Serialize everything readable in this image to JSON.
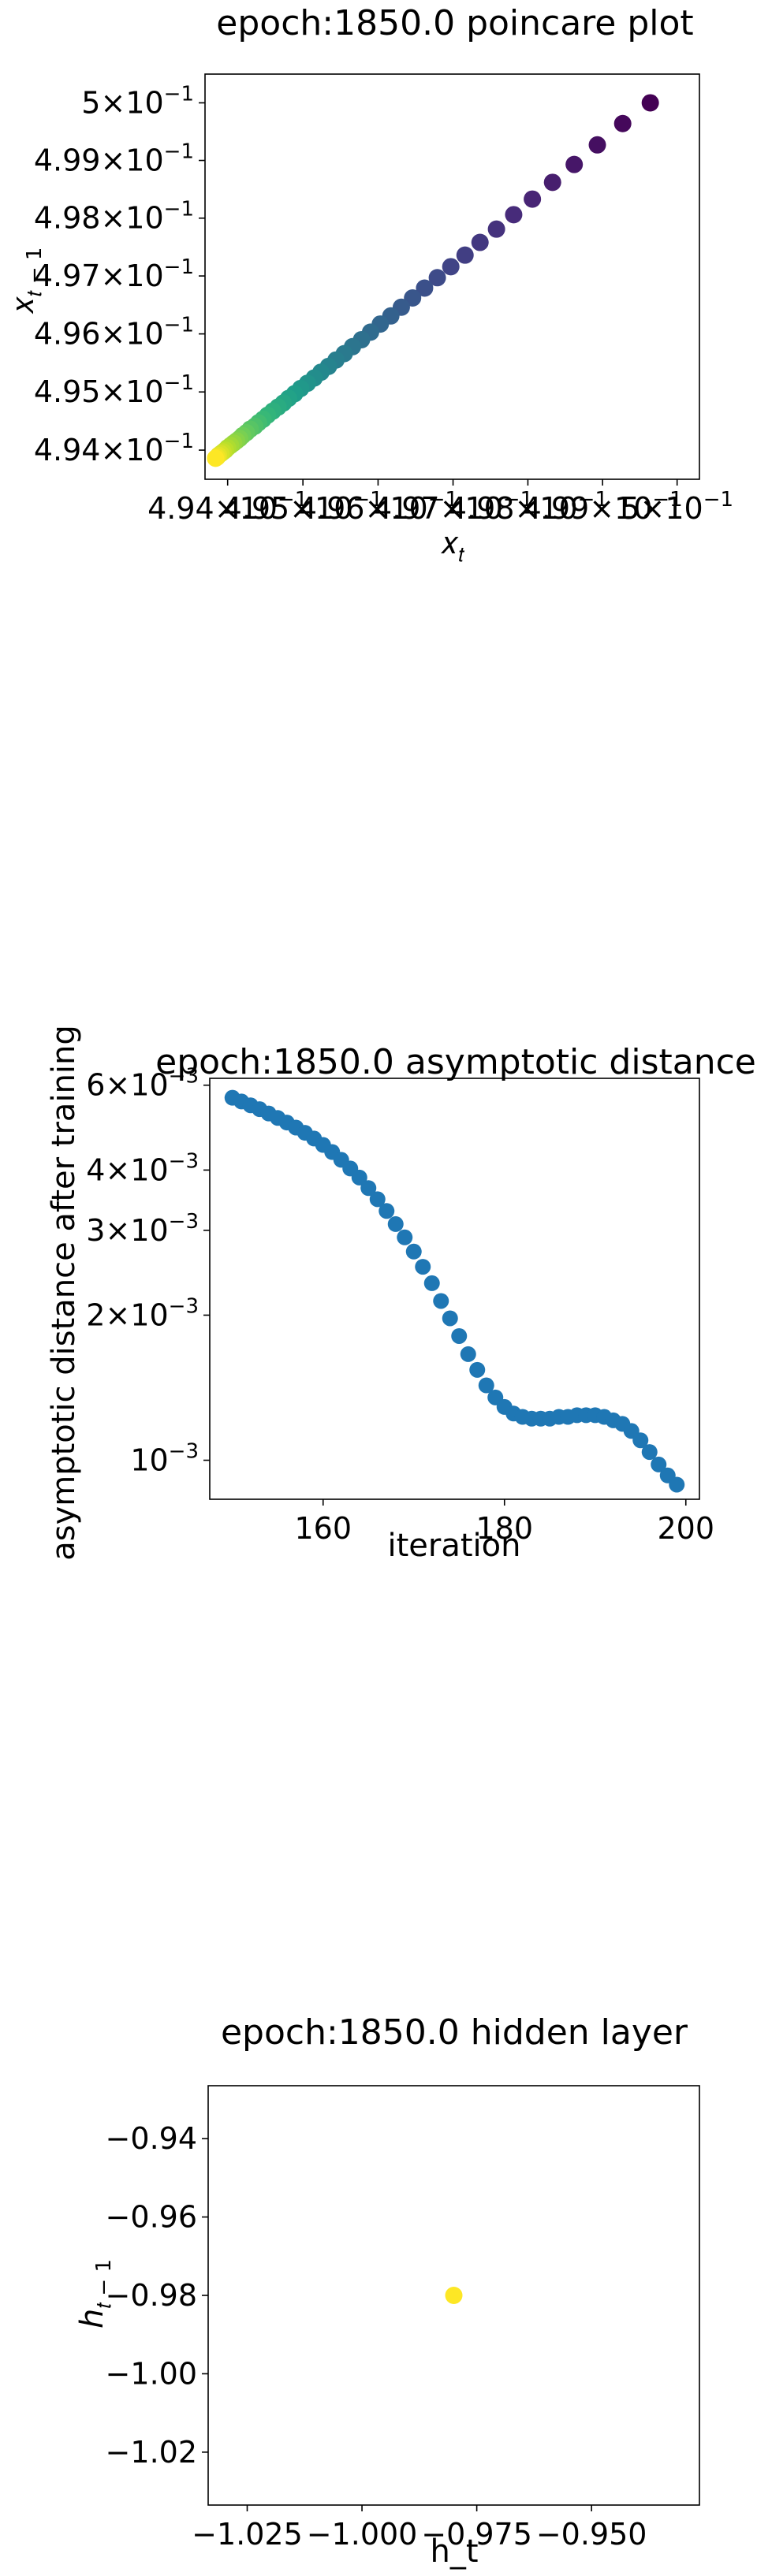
{
  "chart_data": [
    {
      "type": "scatter",
      "title": "epoch:1850.0 poincare plot",
      "xlabel": "x_t",
      "ylabel": "x_{t-1}",
      "x_scale": "log",
      "y_scale": "log",
      "xlim": [
        0.4937,
        0.5003
      ],
      "ylim": [
        0.4935,
        0.5005
      ],
      "x_ticks": [
        0.494,
        0.495,
        0.496,
        0.497,
        0.498,
        0.499,
        0.5
      ],
      "x_tick_labels": [
        {
          "mant": "4.94",
          "exp": "−1"
        },
        {
          "mant": "4.95",
          "exp": "−1"
        },
        {
          "mant": "4.96",
          "exp": "−1"
        },
        {
          "mant": "4.97",
          "exp": "−1"
        },
        {
          "mant": "4.98",
          "exp": "−1"
        },
        {
          "mant": "4.99",
          "exp": "−1"
        },
        {
          "mant": "5",
          "exp": "−1"
        }
      ],
      "y_ticks": [
        0.494,
        0.495,
        0.496,
        0.497,
        0.498,
        0.499,
        0.5
      ],
      "y_tick_labels": [
        {
          "mant": "4.94",
          "exp": "−1"
        },
        {
          "mant": "4.95",
          "exp": "−1"
        },
        {
          "mant": "4.96",
          "exp": "−1"
        },
        {
          "mant": "4.97",
          "exp": "−1"
        },
        {
          "mant": "4.98",
          "exp": "−1"
        },
        {
          "mant": "4.99",
          "exp": "−1"
        },
        {
          "mant": "5",
          "exp": "−1"
        }
      ],
      "colormap": "viridis",
      "color_order": "first point purple, last point yellow",
      "x": [
        0.49964,
        0.49927,
        0.49893,
        0.49862,
        0.49833,
        0.49806,
        0.49781,
        0.49758,
        0.49736,
        0.49716,
        0.49697,
        0.49679,
        0.49662,
        0.49646,
        0.49631,
        0.49617,
        0.49603,
        0.4959,
        0.49578,
        0.49566,
        0.49555,
        0.49544,
        0.49534,
        0.49524,
        0.49515,
        0.49506,
        0.49497,
        0.49489,
        0.49481,
        0.49474,
        0.49467,
        0.4946,
        0.49453,
        0.49447,
        0.49441,
        0.49436,
        0.4943,
        0.49425,
        0.4942,
        0.49416,
        0.49412,
        0.49408,
        0.49404,
        0.494,
        0.49397,
        0.49394,
        0.49391,
        0.49388,
        0.49386,
        0.49384
      ],
      "y": [
        0.5,
        0.49964,
        0.49927,
        0.49893,
        0.49862,
        0.49833,
        0.49806,
        0.49781,
        0.49758,
        0.49736,
        0.49716,
        0.49697,
        0.49679,
        0.49662,
        0.49646,
        0.49631,
        0.49617,
        0.49603,
        0.4959,
        0.49578,
        0.49566,
        0.49555,
        0.49544,
        0.49534,
        0.49524,
        0.49515,
        0.49506,
        0.49497,
        0.49489,
        0.49481,
        0.49474,
        0.49467,
        0.4946,
        0.49453,
        0.49447,
        0.49441,
        0.49436,
        0.4943,
        0.49425,
        0.4942,
        0.49416,
        0.49412,
        0.49408,
        0.49404,
        0.494,
        0.49397,
        0.49394,
        0.49391,
        0.49388,
        0.49386
      ],
      "grid": false
    },
    {
      "type": "scatter",
      "title": "epoch:1850.0 asymptotic distance",
      "xlabel": "iteration",
      "ylabel": "asymptotic distance after training",
      "y_scale": "log",
      "xlim": [
        147.5,
        201.5
      ],
      "ylim": [
        0.00083,
        0.0062
      ],
      "x_ticks": [
        160,
        180,
        200
      ],
      "x_tick_labels": [
        "160",
        "180",
        "200"
      ],
      "y_ticks": [
        0.006,
        0.004,
        0.003,
        0.002,
        0.001
      ],
      "y_tick_labels": [
        {
          "mant": "6",
          "exp": "−3"
        },
        {
          "mant": "4",
          "exp": "−3"
        },
        {
          "mant": "3",
          "exp": "−3"
        },
        {
          "mant": "2",
          "exp": "−3"
        },
        {
          "mant": "10",
          "exp": "−3",
          "plain": true
        }
      ],
      "color": "#1f77b4",
      "x": [
        150,
        151,
        152,
        153,
        154,
        155,
        156,
        157,
        158,
        159,
        160,
        161,
        162,
        163,
        164,
        165,
        166,
        167,
        168,
        169,
        170,
        171,
        172,
        173,
        174,
        175,
        176,
        177,
        178,
        179,
        180,
        181,
        182,
        183,
        184,
        185,
        186,
        187,
        188,
        189,
        190,
        191,
        192,
        193,
        194,
        195,
        196,
        197,
        198,
        199
      ],
      "y": [
        0.00565,
        0.00555,
        0.00545,
        0.00535,
        0.00524,
        0.00513,
        0.00502,
        0.0049,
        0.00478,
        0.00465,
        0.00451,
        0.00436,
        0.0042,
        0.00403,
        0.00386,
        0.00367,
        0.00348,
        0.00329,
        0.00309,
        0.0029,
        0.00271,
        0.00252,
        0.00233,
        0.00214,
        0.00197,
        0.00181,
        0.00166,
        0.00154,
        0.00143,
        0.00135,
        0.00129,
        0.00125,
        0.00123,
        0.00122,
        0.00122,
        0.00122,
        0.00123,
        0.00123,
        0.00124,
        0.00124,
        0.00124,
        0.00123,
        0.00121,
        0.00119,
        0.00115,
        0.0011,
        0.00104,
        0.00098,
        0.00093,
        0.00089
      ],
      "grid": false
    },
    {
      "type": "scatter",
      "title": "epoch:1850.0 hidden layer",
      "xlabel": "h_t",
      "ylabel": "h_{t-1}",
      "xlim": [
        -1.0335,
        -0.9265
      ],
      "ylim": [
        -1.0335,
        -0.9265
      ],
      "x_ticks": [
        -1.025,
        -1.0,
        -0.975,
        -0.95
      ],
      "x_tick_labels": [
        "−1.025",
        "−1.000",
        "−0.975",
        "−0.950"
      ],
      "y_ticks": [
        -0.94,
        -0.96,
        -0.98,
        -1.0,
        -1.02
      ],
      "y_tick_labels": [
        "−0.94",
        "−0.96",
        "−0.98",
        "−1.00",
        "−1.02"
      ],
      "color": "#fde725",
      "x": [
        -0.98
      ],
      "y": [
        -0.98
      ],
      "grid": false
    }
  ]
}
